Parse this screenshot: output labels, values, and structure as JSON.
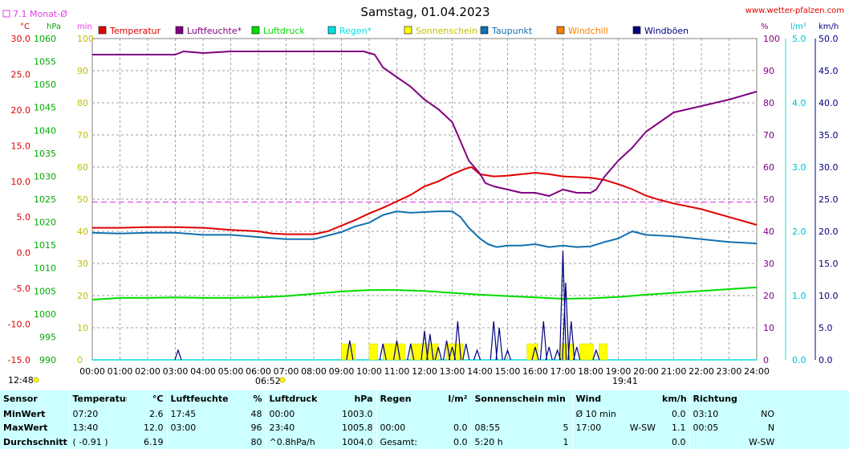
{
  "header": {
    "title": "Samstag, 01.04.2023",
    "site": "www.wetter-pfalzen.com",
    "month_avg_label": "7.1 Monat-Ø",
    "sunrise_label": "12:48",
    "sunrise_tick": "06:52",
    "sunset_tick": "19:41"
  },
  "colors": {
    "temperature": "#e00000",
    "humidity": "#800080",
    "pressure": "#00dd00",
    "rain": "#00e0e0",
    "sunshine": "#ffff00",
    "dewpoint": "#1070b0",
    "windchill": "#ff8000",
    "gusts": "#000080",
    "month_avg": "#e040e0"
  },
  "chart_data": {
    "type": "line",
    "title": "Samstag, 01.04.2023",
    "x_ticks": [
      "00:00",
      "01:00",
      "02:00",
      "03:00",
      "04:00",
      "05:00",
      "06:00",
      "07:00",
      "08:00",
      "09:00",
      "10:00",
      "11:00",
      "12:00",
      "13:00",
      "14:00",
      "15:00",
      "16:00",
      "17:00",
      "18:00",
      "19:00",
      "20:00",
      "21:00",
      "22:00",
      "23:00",
      "24:00"
    ],
    "xlim": [
      0,
      24
    ],
    "grid": true,
    "legend_position": "top",
    "axes": {
      "temp": {
        "unit": "°C",
        "ylim": [
          -15,
          30
        ],
        "ticks": [
          "-15.0",
          "-10.0",
          "-5.0",
          "0.0",
          "5.0",
          "10.0",
          "15.0",
          "20.0",
          "25.0",
          "30.0"
        ]
      },
      "press": {
        "unit": "hPa",
        "ylim": [
          990,
          1060
        ],
        "ticks": [
          "990",
          "995",
          "1000",
          "1005",
          "1010",
          "1015",
          "1020",
          "1025",
          "1030",
          "1035",
          "1040",
          "1045",
          "1050",
          "1055",
          "1060"
        ]
      },
      "min": {
        "unit": "min",
        "ylim": [
          0,
          100
        ],
        "ticks": [
          "0",
          "10",
          "20",
          "30",
          "40",
          "50",
          "60",
          "70",
          "80",
          "90",
          "100"
        ]
      },
      "pct": {
        "unit": "%",
        "ylim": [
          0,
          100
        ],
        "ticks": [
          "0",
          "10",
          "20",
          "30",
          "40",
          "50",
          "60",
          "70",
          "80",
          "90",
          "100"
        ]
      },
      "rain": {
        "unit": "l/m²",
        "ylim": [
          0,
          5
        ],
        "ticks": [
          "0.0",
          "1.0",
          "2.0",
          "3.0",
          "4.0",
          "5.0"
        ]
      },
      "wind": {
        "unit": "km/h",
        "ylim": [
          0,
          50
        ],
        "ticks": [
          "0.0",
          "5.0",
          "10.0",
          "15.0",
          "20.0",
          "25.0",
          "30.0",
          "35.0",
          "40.0",
          "45.0",
          "50.0"
        ]
      }
    },
    "month_avg_temp": 7.1,
    "series": [
      {
        "name": "Temperatur",
        "axis": "temp",
        "color_key": "temperature",
        "x": [
          0,
          1,
          2,
          3,
          4,
          5,
          6,
          6.5,
          7,
          8,
          8.5,
          9,
          9.5,
          10,
          10.5,
          11,
          11.5,
          12,
          12.5,
          13,
          13.5,
          13.7,
          14,
          14.5,
          15,
          15.5,
          16,
          16.5,
          17,
          17.5,
          18,
          18.5,
          19,
          19.5,
          20,
          20.5,
          21,
          22,
          23,
          24
        ],
        "y": [
          3.5,
          3.5,
          3.6,
          3.6,
          3.5,
          3.2,
          3.0,
          2.7,
          2.6,
          2.6,
          3.0,
          3.8,
          4.6,
          5.5,
          6.3,
          7.2,
          8.1,
          9.3,
          10.0,
          11.0,
          11.8,
          12.0,
          11.0,
          10.7,
          10.8,
          11.0,
          11.2,
          11.0,
          10.7,
          10.6,
          10.5,
          10.2,
          9.6,
          8.9,
          8.0,
          7.4,
          6.9,
          6.1,
          5.0,
          3.9
        ]
      },
      {
        "name": "Luftfeuchte*",
        "axis": "pct",
        "color_key": "humidity",
        "x": [
          0,
          1,
          2,
          3,
          3.3,
          4,
          5,
          6,
          7,
          8,
          9,
          9.8,
          10.2,
          10.5,
          11,
          11.5,
          12,
          12.5,
          13,
          13.3,
          13.6,
          14,
          14.2,
          14.5,
          15,
          15.5,
          16,
          16.5,
          17,
          17.5,
          18,
          18.2,
          18.5,
          19,
          19.5,
          20,
          20.5,
          21,
          22,
          23,
          24
        ],
        "y": [
          95,
          95,
          95,
          95,
          96,
          95.5,
          96,
          96,
          96,
          96,
          96,
          96,
          95,
          91,
          88,
          85,
          81,
          78,
          74,
          68,
          62,
          58,
          55,
          54,
          53,
          52,
          52,
          51,
          53,
          52,
          52,
          53,
          57,
          62,
          66,
          71,
          74,
          77,
          79,
          81,
          83.5
        ]
      },
      {
        "name": "Luftdruck",
        "axis": "press",
        "color_key": "pressure",
        "x": [
          0,
          1,
          2,
          3,
          4,
          5,
          6,
          7,
          8,
          9,
          10,
          11,
          12,
          13,
          14,
          15,
          16,
          17,
          18,
          19,
          20,
          21,
          22,
          23,
          24
        ],
        "y": [
          1003.1,
          1003.5,
          1003.5,
          1003.6,
          1003.5,
          1003.5,
          1003.6,
          1003.9,
          1004.4,
          1004.9,
          1005.2,
          1005.2,
          1005.0,
          1004.6,
          1004.2,
          1003.9,
          1003.6,
          1003.3,
          1003.4,
          1003.7,
          1004.2,
          1004.6,
          1005.0,
          1005.4,
          1005.8
        ]
      },
      {
        "name": "Regen*",
        "axis": "rain",
        "color_key": "rain",
        "x": [
          0,
          24
        ],
        "y": [
          0,
          0
        ]
      },
      {
        "name": "Sonnenschein",
        "axis": "min",
        "color_key": "sunshine",
        "bars": [
          [
            9.0,
            9.5,
            5
          ],
          [
            10.0,
            10.3,
            5
          ],
          [
            10.5,
            11.3,
            5
          ],
          [
            11.5,
            12.5,
            5
          ],
          [
            12.8,
            13.4,
            5
          ],
          [
            15.7,
            16.1,
            5
          ],
          [
            16.9,
            17.4,
            5
          ],
          [
            17.6,
            18.1,
            5
          ],
          [
            18.3,
            18.6,
            5
          ]
        ]
      },
      {
        "name": "Taupunkt",
        "axis": "temp",
        "color_key": "dewpoint",
        "x": [
          0,
          1,
          2,
          3,
          4,
          5,
          6,
          7,
          8,
          9,
          9.5,
          10,
          10.5,
          11,
          11.5,
          12,
          12.5,
          13,
          13.3,
          13.6,
          14,
          14.3,
          14.6,
          15,
          15.5,
          16,
          16.5,
          17,
          17.5,
          18,
          18.5,
          19,
          19.5,
          20,
          21,
          22,
          23,
          24
        ],
        "y": [
          2.8,
          2.7,
          2.8,
          2.8,
          2.5,
          2.5,
          2.2,
          1.9,
          1.9,
          2.9,
          3.7,
          4.2,
          5.3,
          5.8,
          5.6,
          5.7,
          5.8,
          5.8,
          5.0,
          3.5,
          2.0,
          1.2,
          0.8,
          1.0,
          1.0,
          1.2,
          0.8,
          1.0,
          0.8,
          0.9,
          1.5,
          2.0,
          3.0,
          2.5,
          2.3,
          1.9,
          1.5,
          1.3
        ]
      },
      {
        "name": "Windchill",
        "axis": "temp",
        "color_key": "windchill",
        "x": [],
        "y": []
      },
      {
        "name": "Windböen",
        "axis": "wind",
        "color_key": "gusts",
        "spikes": [
          [
            3.1,
            1.5
          ],
          [
            9.3,
            3.0
          ],
          [
            10.5,
            2.5
          ],
          [
            11.0,
            3.0
          ],
          [
            11.5,
            2.5
          ],
          [
            12.0,
            4.5
          ],
          [
            12.2,
            4.0
          ],
          [
            12.5,
            2.0
          ],
          [
            12.8,
            3.0
          ],
          [
            13.0,
            2.0
          ],
          [
            13.2,
            6.0
          ],
          [
            13.5,
            2.5
          ],
          [
            13.9,
            1.5
          ],
          [
            14.5,
            6.0
          ],
          [
            14.7,
            5.0
          ],
          [
            15.0,
            1.5
          ],
          [
            16.0,
            2.0
          ],
          [
            16.3,
            6.0
          ],
          [
            16.5,
            2.0
          ],
          [
            16.8,
            1.5
          ],
          [
            17.0,
            17.0
          ],
          [
            17.1,
            12.0
          ],
          [
            17.3,
            6.0
          ],
          [
            17.5,
            2.0
          ],
          [
            18.2,
            1.5
          ]
        ]
      }
    ]
  },
  "stats": {
    "headers": {
      "sensor": "Sensor",
      "temp": "Temperatur",
      "temp_unit": "°C",
      "hum": "Luftfeuchte",
      "hum_unit": "%",
      "press": "Luftdruck",
      "press_unit": "hPa",
      "rain": "Regen",
      "rain_unit": "l/m²",
      "sun": "Sonnenschein min",
      "wind": "Wind",
      "wind_unit": "km/h",
      "dir": "Richtung"
    },
    "rows": [
      {
        "label": "MinWert",
        "temp_time": "07:20",
        "temp_val": "2.6",
        "hum_time": "17:45",
        "hum_val": "48",
        "press_time": "00:00",
        "press_val": "1003.0",
        "rain_time": "",
        "rain_val": "",
        "sun_time": "",
        "sun_val": "",
        "wind_time": "Ø 10 min.",
        "wind_dir": "",
        "wind_val": "0.0",
        "dir_time": "03:10",
        "dir_val": "NO"
      },
      {
        "label": "MaxWert",
        "temp_time": "13:40",
        "temp_val": "12.0",
        "hum_time": "03:00",
        "hum_val": "96",
        "press_time": "23:40",
        "press_val": "1005.8",
        "rain_time": "00:00",
        "rain_val": "0.0",
        "sun_time": "08:55",
        "sun_val": "5",
        "wind_time": "17:00",
        "wind_dir": "W-SW",
        "wind_val": "1.1",
        "dir_time": "00:05",
        "dir_val": "N"
      },
      {
        "label": "Durchschnitt",
        "temp_time": "( -0.91 )",
        "temp_val": "6.19",
        "hum_time": "",
        "hum_val": "80",
        "press_time": "^0.8hPa/h",
        "press_val": "1004.0",
        "rain_time": "Gesamt:",
        "rain_val": "0.0",
        "sun_time": "5:20 h",
        "sun_val": "1",
        "wind_time": "",
        "wind_dir": "",
        "wind_val": "0.0",
        "dir_time": "",
        "dir_val": "W-SW"
      }
    ]
  }
}
